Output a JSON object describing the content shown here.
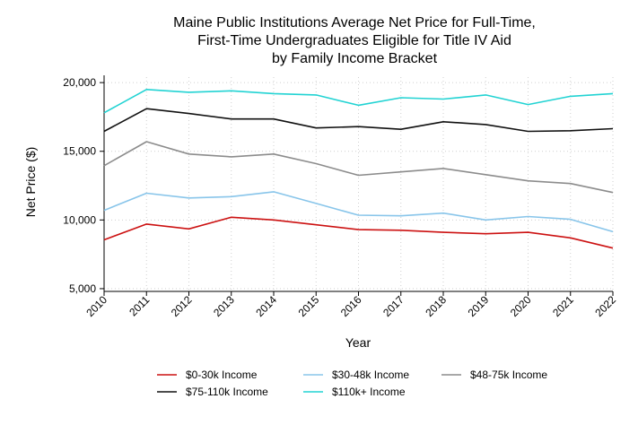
{
  "chart_data": {
    "type": "line",
    "title": [
      "Maine Public Institutions Average Net Price for Full-Time,",
      "First-Time Undergraduates Eligible for Title IV Aid",
      "by Family Income Bracket"
    ],
    "xlabel": "Year",
    "ylabel": "Net Price ($)",
    "x": [
      2010,
      2011,
      2012,
      2013,
      2014,
      2015,
      2016,
      2017,
      2018,
      2019,
      2020,
      2021,
      2022
    ],
    "x_tick_labels": [
      "2010",
      "2011",
      "2012",
      "2013",
      "2014",
      "2015",
      "2016",
      "2017",
      "2018",
      "2019",
      "2020",
      "2021",
      "2022"
    ],
    "ylim": [
      4800,
      20400
    ],
    "y_ticks": [
      5000,
      10000,
      15000,
      20000
    ],
    "y_tick_labels": [
      "5,000",
      "10,000",
      "15,000",
      "20,000"
    ],
    "grid": true,
    "legend_position": "bottom",
    "series": [
      {
        "name": "$0-30k Income",
        "color": "#cc1111",
        "values": [
          8550,
          9700,
          9350,
          10200,
          10000,
          9650,
          9300,
          9250,
          9100,
          9000,
          9100,
          8700,
          7950
        ]
      },
      {
        "name": "$30-48k Income",
        "color": "#88c5ea",
        "values": [
          10700,
          11950,
          11600,
          11700,
          12050,
          11200,
          10350,
          10300,
          10500,
          10000,
          10250,
          10050,
          9150
        ]
      },
      {
        "name": "$48-75k Income",
        "color": "#8c8c8c",
        "values": [
          13950,
          15700,
          14800,
          14600,
          14800,
          14100,
          13250,
          13500,
          13750,
          13300,
          12850,
          12650,
          12000
        ]
      },
      {
        "name": "$75-110k Income",
        "color": "#111111",
        "values": [
          16450,
          18100,
          17750,
          17350,
          17350,
          16700,
          16800,
          16600,
          17150,
          16950,
          16450,
          16500,
          16650
        ]
      },
      {
        "name": "$110k+ Income",
        "color": "#22d3d3",
        "values": [
          17800,
          19500,
          19300,
          19400,
          19200,
          19100,
          18350,
          18900,
          18800,
          19100,
          18400,
          19000,
          19200
        ]
      }
    ]
  }
}
